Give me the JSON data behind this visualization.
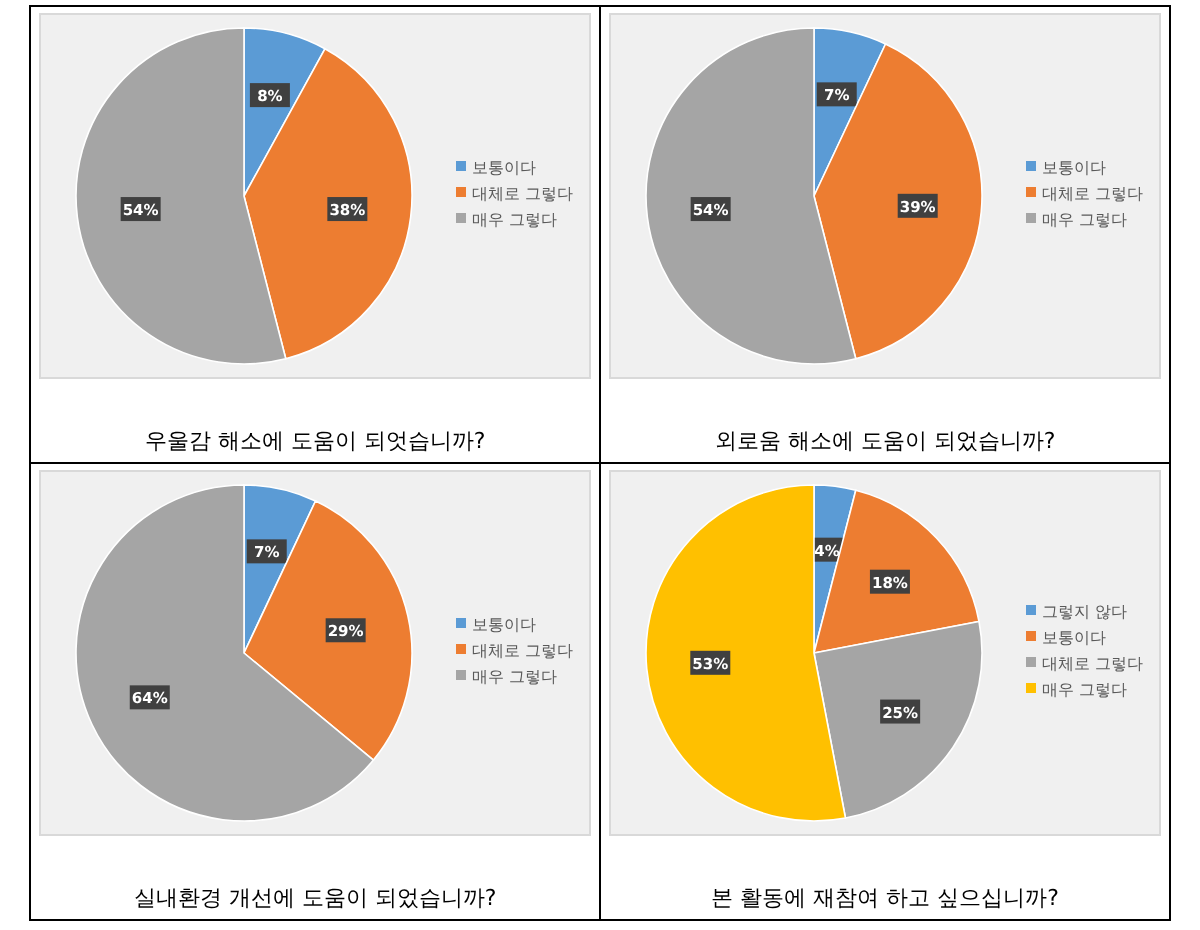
{
  "chart_data": [
    {
      "type": "pie",
      "title": "우울감 해소에 도움이 되엇습니까?",
      "categories": [
        "보통이다",
        "대체로 그렇다",
        "매우 그렇다"
      ],
      "values": [
        8,
        38,
        54
      ],
      "value_labels": [
        "8%",
        "38%",
        "54%"
      ],
      "colors": [
        "#5b9bd5",
        "#ed7d31",
        "#a5a5a5"
      ],
      "legend": "right"
    },
    {
      "type": "pie",
      "title": "외로움 해소에 도움이 되었습니까?",
      "categories": [
        "보통이다",
        "대체로 그렇다",
        "매우 그렇다"
      ],
      "values": [
        7,
        39,
        54
      ],
      "value_labels": [
        "7%",
        "39%",
        "54%"
      ],
      "colors": [
        "#5b9bd5",
        "#ed7d31",
        "#a5a5a5"
      ],
      "legend": "right"
    },
    {
      "type": "pie",
      "title": "실내환경 개선에 도움이 되었습니까?",
      "categories": [
        "보통이다",
        "대체로 그렇다",
        "매우 그렇다"
      ],
      "values": [
        7,
        29,
        64
      ],
      "value_labels": [
        "7%",
        "29%",
        "64%"
      ],
      "colors": [
        "#5b9bd5",
        "#ed7d31",
        "#a5a5a5"
      ],
      "legend": "right"
    },
    {
      "type": "pie",
      "title": "본 활동에 재참여 하고 싶으십니까?",
      "categories": [
        "그렇지 않다",
        "보통이다",
        "대체로 그렇다",
        "매우 그렇다"
      ],
      "values": [
        4,
        18,
        25,
        53
      ],
      "value_labels": [
        "4%",
        "18%",
        "25%",
        "53%"
      ],
      "colors": [
        "#5b9bd5",
        "#ed7d31",
        "#a5a5a5",
        "#ffc000"
      ],
      "legend": "right"
    }
  ]
}
